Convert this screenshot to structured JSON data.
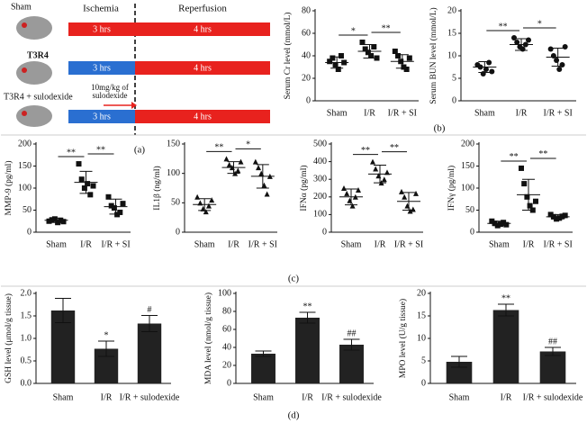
{
  "diagram": {
    "headers": {
      "ischemia": "Ischemia",
      "reperfusion": "Reperfusion"
    },
    "rows": [
      {
        "name": "Sham",
        "ischemia": "3 hrs",
        "reperfusion": "4 hrs",
        "ischemia_color": "#e8221e",
        "reperfusion_color": "#e8221e"
      },
      {
        "name": "T3R4",
        "ischemia": "3 hrs",
        "reperfusion": "4 hrs",
        "ischemia_color": "#2a6fd1",
        "reperfusion_color": "#e8221e"
      },
      {
        "name": "T3R4 + sulodexide",
        "ischemia": "3 hrs",
        "reperfusion": "4 hrs",
        "ischemia_color": "#2a6fd1",
        "reperfusion_color": "#e8221e"
      }
    ],
    "note": [
      "10mg/kg of",
      "sulodexide"
    ]
  },
  "panel_labels": [
    "(a)",
    "(b)",
    "(c)",
    "(d)"
  ],
  "chart_data": [
    {
      "type": "dot",
      "ylabel": "Serum Cr level (mmol/L)",
      "marker": "square",
      "categories": [
        "Sham",
        "I/R",
        "I/R + SI"
      ],
      "values": [
        [
          35,
          38,
          32,
          28,
          40,
          34
        ],
        [
          52,
          46,
          43,
          40,
          48,
          38
        ],
        [
          44,
          40,
          35,
          30,
          28,
          38
        ]
      ],
      "means": [
        34,
        44,
        35
      ],
      "errors": [
        5,
        6,
        6
      ],
      "ylim": [
        0,
        80
      ],
      "yticks": [
        0,
        20,
        40,
        60,
        80
      ],
      "comparisons": [
        {
          "pair": [
            "Sham",
            "I/R"
          ],
          "label": "*"
        },
        {
          "pair": [
            "I/R",
            "I/R + SI"
          ],
          "label": "**"
        }
      ]
    },
    {
      "type": "dot",
      "ylabel": "Serum BUN level (mmol/L)",
      "marker": "circle",
      "categories": [
        "Sham",
        "I/R",
        "I/R + SI"
      ],
      "values": [
        [
          8,
          7.5,
          6,
          7,
          8.5,
          6.5
        ],
        [
          14,
          13,
          12,
          11.5,
          12.5,
          13.5
        ],
        [
          11.5,
          10,
          9,
          7,
          8,
          12
        ]
      ],
      "means": [
        7.5,
        12.5,
        9.7
      ],
      "errors": [
        1.2,
        1.3,
        2
      ],
      "ylim": [
        0,
        20
      ],
      "yticks": [
        0,
        5,
        10,
        15,
        20
      ],
      "comparisons": [
        {
          "pair": [
            "Sham",
            "I/R"
          ],
          "label": "**"
        },
        {
          "pair": [
            "I/R",
            "I/R + SI"
          ],
          "label": "*"
        }
      ]
    },
    {
      "type": "dot",
      "ylabel": "MMP-9 (pg/ml)",
      "marker": "square",
      "categories": [
        "Sham",
        "I/R",
        "I/R + SI"
      ],
      "values": [
        [
          25,
          28,
          30,
          22,
          27,
          24
        ],
        [
          155,
          120,
          100,
          110,
          85,
          105
        ],
        [
          80,
          60,
          55,
          40,
          45,
          65
        ]
      ],
      "means": [
        27,
        113,
        58
      ],
      "errors": [
        5,
        25,
        17
      ],
      "ylim": [
        0,
        200
      ],
      "yticks": [
        0,
        50,
        100,
        150,
        200
      ],
      "comparisons": [
        {
          "pair": [
            "Sham",
            "I/R"
          ],
          "label": "**"
        },
        {
          "pair": [
            "I/R",
            "I/R + SI"
          ],
          "label": "**"
        }
      ]
    },
    {
      "type": "dot",
      "ylabel": "IL1β (ng/ml)",
      "marker": "triangle",
      "categories": [
        "Sham",
        "I/R",
        "I/R + SI"
      ],
      "values": [
        [
          60,
          50,
          40,
          35,
          45,
          55
        ],
        [
          125,
          115,
          110,
          100,
          105,
          120
        ],
        [
          120,
          110,
          100,
          80,
          65,
          95
        ]
      ],
      "means": [
        47,
        110,
        95
      ],
      "errors": [
        10,
        10,
        20
      ],
      "ylim": [
        0,
        150
      ],
      "yticks": [
        0,
        50,
        100,
        150
      ],
      "comparisons": [
        {
          "pair": [
            "Sham",
            "I/R"
          ],
          "label": "**"
        },
        {
          "pair": [
            "I/R",
            "I/R + SI"
          ],
          "label": "*"
        }
      ]
    },
    {
      "type": "dot",
      "ylabel": "IFNα (pg/ml)",
      "marker": "triangle",
      "categories": [
        "Sham",
        "I/R",
        "I/R + SI"
      ],
      "values": [
        [
          250,
          220,
          180,
          150,
          200,
          240
        ],
        [
          400,
          360,
          320,
          280,
          300,
          340
        ],
        [
          230,
          200,
          150,
          120,
          130,
          220
        ]
      ],
      "means": [
        200,
        330,
        175
      ],
      "errors": [
        45,
        50,
        50
      ],
      "ylim": [
        0,
        500
      ],
      "yticks": [
        0,
        100,
        200,
        300,
        400,
        500
      ],
      "comparisons": [
        {
          "pair": [
            "Sham",
            "I/R"
          ],
          "label": "**"
        },
        {
          "pair": [
            "I/R",
            "I/R + SI"
          ],
          "label": "**"
        }
      ]
    },
    {
      "type": "dot",
      "ylabel": "IFNγ (pg/ml)",
      "marker": "square",
      "categories": [
        "Sham",
        "I/R",
        "I/R + SI"
      ],
      "values": [
        [
          25,
          20,
          15,
          18,
          22,
          17
        ],
        [
          145,
          110,
          80,
          60,
          50,
          70
        ],
        [
          40,
          35,
          30,
          32,
          36,
          38
        ]
      ],
      "means": [
        20,
        85,
        35
      ],
      "errors": [
        5,
        35,
        5
      ],
      "ylim": [
        0,
        200
      ],
      "yticks": [
        0,
        50,
        100,
        150,
        200
      ],
      "comparisons": [
        {
          "pair": [
            "Sham",
            "I/R"
          ],
          "label": "**"
        },
        {
          "pair": [
            "I/R",
            "I/R + SI"
          ],
          "label": "**"
        }
      ]
    },
    {
      "type": "bar",
      "ylabel": "GSH level (μmol/g tissue)",
      "color": "#222222",
      "categories": [
        "Sham",
        "I/R",
        "I/R + sulodexide"
      ],
      "values": [
        1.62,
        0.77,
        1.33
      ],
      "errors": [
        0.27,
        0.17,
        0.18
      ],
      "annotations": [
        null,
        "*",
        "#"
      ],
      "ylim": [
        0,
        2
      ],
      "yticks": [
        {
          "value": 0,
          "label": "0.0"
        },
        0.5,
        {
          "value": 1,
          "label": "1.0"
        },
        1.5,
        {
          "value": 2,
          "label": "2.0"
        }
      ]
    },
    {
      "type": "bar",
      "ylabel": "MDA level (nmol/g tissue)",
      "color": "#222222",
      "categories": [
        "Sham",
        "I/R",
        "I/R + sulodexide"
      ],
      "values": [
        33,
        73,
        43
      ],
      "errors": [
        3,
        6,
        6
      ],
      "annotations": [
        null,
        "**",
        "##"
      ],
      "ylim": [
        0,
        100
      ],
      "yticks": [
        0,
        20,
        40,
        60,
        80,
        100
      ]
    },
    {
      "type": "bar",
      "ylabel": "MPO level (U/g tissue)",
      "color": "#222222",
      "categories": [
        "Sham",
        "I/R",
        "I/R + sulodexide"
      ],
      "values": [
        4.8,
        16.3,
        7.1
      ],
      "errors": [
        1.2,
        1.3,
        0.9
      ],
      "annotations": [
        null,
        "**",
        "##"
      ],
      "ylim": [
        0,
        20
      ],
      "yticks": [
        0,
        5,
        10,
        15,
        20
      ]
    }
  ]
}
